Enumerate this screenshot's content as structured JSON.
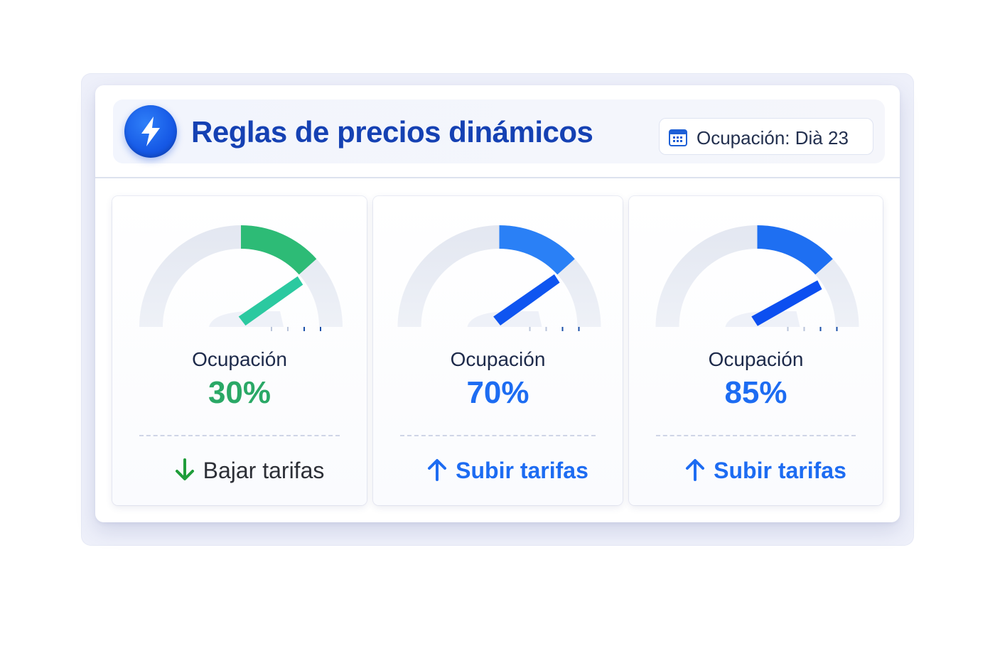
{
  "header": {
    "title": "Reglas de precios dinámicos",
    "title_icon": "lightning-bolt-icon",
    "date_chip": {
      "icon": "calendar-icon",
      "text": "Ocupación: Dià 23"
    }
  },
  "colors": {
    "brand": "#1541b3",
    "accent_blue": "#1d6cf2",
    "accent_green": "#2bb673",
    "down_arrow": "#1f9d3a"
  },
  "cards": [
    {
      "label": "Ocupación",
      "value": "30%",
      "occupancy": 0.3,
      "action": "Bajar tarifas",
      "direction": "down",
      "value_color": "#2aa866",
      "action_color": "#2c2f36",
      "arrow_color": "#1f9d3a",
      "arc_color": "#2dbb76",
      "needle_color": "#2bc9a0",
      "tick_color": "#1a4fa8"
    },
    {
      "label": "Ocupación",
      "value": "70%",
      "occupancy": 0.7,
      "action": "Subir tarifas",
      "direction": "up",
      "value_color": "#1d6cf2",
      "action_color": "#1d6cf2",
      "arrow_color": "#1d6cf2",
      "arc_color": "#2a80f6",
      "needle_color": "#0f55f0",
      "tick_color": "#1a4fa8"
    },
    {
      "label": "Ocupación",
      "value": "85%",
      "occupancy": 0.85,
      "action": "Subir tarifas",
      "direction": "up",
      "value_color": "#1d6cf2",
      "action_color": "#1d6cf2",
      "arrow_color": "#1d6cf2",
      "arc_color": "#1e6ff2",
      "needle_color": "#0c4ff0",
      "tick_color": "#1a4fa8"
    }
  ]
}
